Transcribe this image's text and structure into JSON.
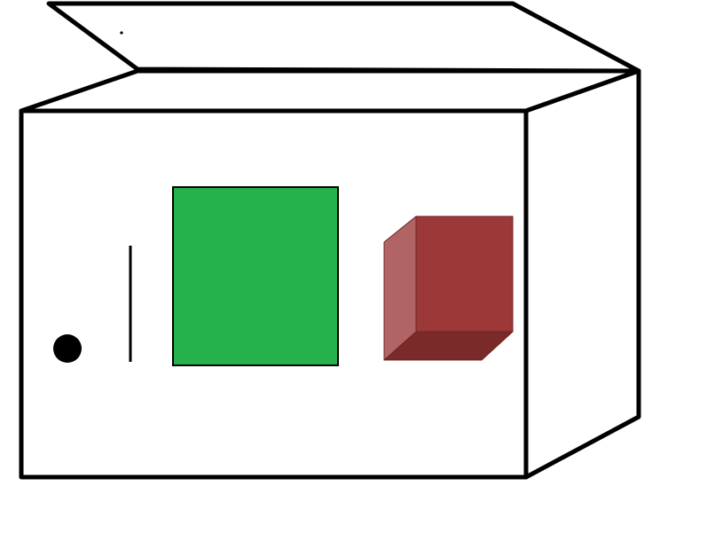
{
  "scene": {
    "background_color": "#ffffff",
    "outline_color": "#000000",
    "open_box": {
      "face_color": "#ffffff"
    },
    "green_square": {
      "color": "#25b24b"
    },
    "red_cube": {
      "front_color": "#9c3838",
      "side_color": "#b06464",
      "bottom_color": "#7b2a2a"
    },
    "dot": {
      "color": "#000000"
    }
  }
}
